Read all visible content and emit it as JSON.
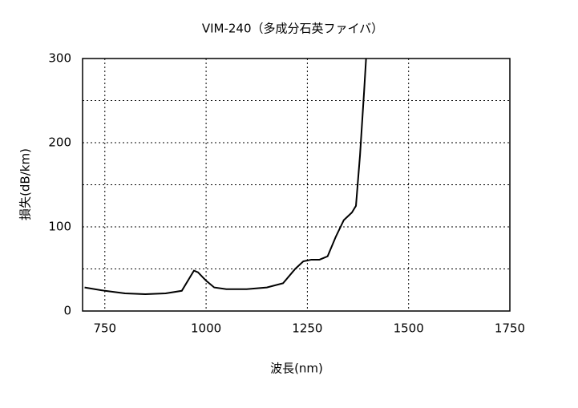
{
  "chart_data": {
    "type": "line",
    "title": "VIM-240（多成分石英ファイバ）",
    "x_label": "波長(nm)",
    "y_label": "損失(dB/km)",
    "x": [
      700,
      750,
      800,
      850,
      900,
      940,
      960,
      970,
      980,
      1000,
      1020,
      1050,
      1100,
      1150,
      1190,
      1220,
      1240,
      1260,
      1280,
      1300,
      1320,
      1340,
      1360,
      1370,
      1380,
      1390,
      1395
    ],
    "values": [
      28,
      24,
      21,
      20,
      21,
      24,
      40,
      48,
      46,
      36,
      28,
      26,
      26,
      28,
      33,
      50,
      59,
      61,
      61,
      65,
      88,
      108,
      117,
      125,
      185,
      260,
      300
    ],
    "color": "#000000",
    "xlim": [
      695,
      1750
    ],
    "xticks": [
      750,
      1000,
      1250,
      1500,
      1750
    ],
    "ylim": [
      0,
      300
    ],
    "yticks": [
      0,
      100,
      200,
      300
    ],
    "y_minor_grid": [
      50,
      150,
      250
    ],
    "grid": true
  }
}
